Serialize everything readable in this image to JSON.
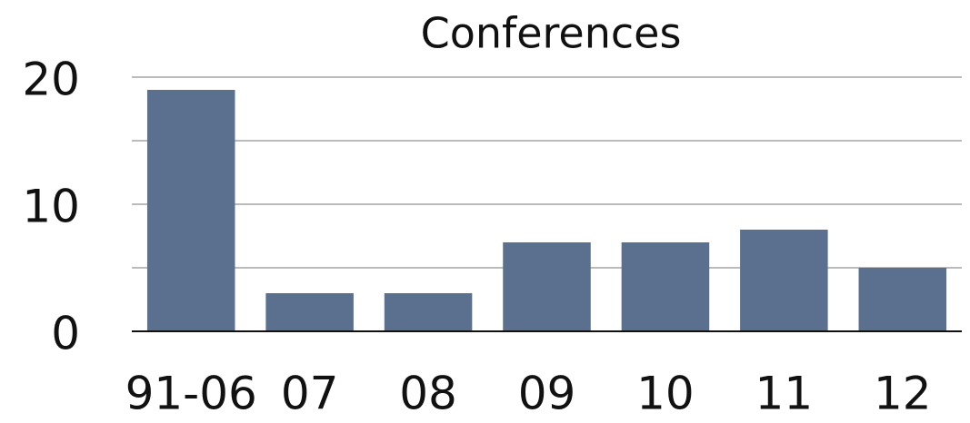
{
  "chart_data": {
    "type": "bar",
    "title": "Conferences",
    "categories": [
      "91-06",
      "07",
      "08",
      "09",
      "10",
      "11",
      "12"
    ],
    "values": [
      19,
      3,
      3,
      7,
      7,
      8,
      5
    ],
    "color": "#5b6f8f",
    "ylim": [
      0,
      20
    ],
    "yticks": [
      0,
      10,
      20
    ],
    "minor_yticks": [
      5,
      15
    ],
    "grid": true
  }
}
